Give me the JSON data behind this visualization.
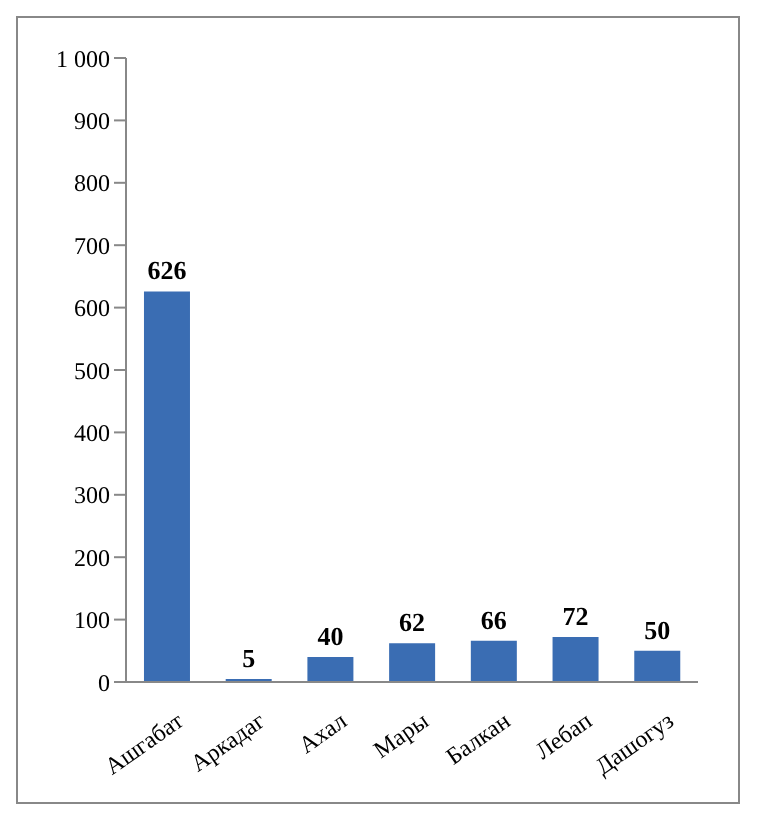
{
  "chart_data": {
    "type": "bar",
    "categories": [
      "Ашгабат",
      "Аркадаг",
      "Ахал",
      "Мары",
      "Балкан",
      "Лебап",
      "Дашогуз"
    ],
    "values": [
      626,
      5,
      40,
      62,
      66,
      72,
      50
    ],
    "color": "#3a6db3",
    "ylim": [
      0,
      1000
    ],
    "yticks": [
      0,
      100,
      200,
      300,
      400,
      500,
      600,
      700,
      800,
      900,
      {
        "value": 1000,
        "label": "1 000"
      }
    ],
    "data_labels": true,
    "grid": false
  }
}
